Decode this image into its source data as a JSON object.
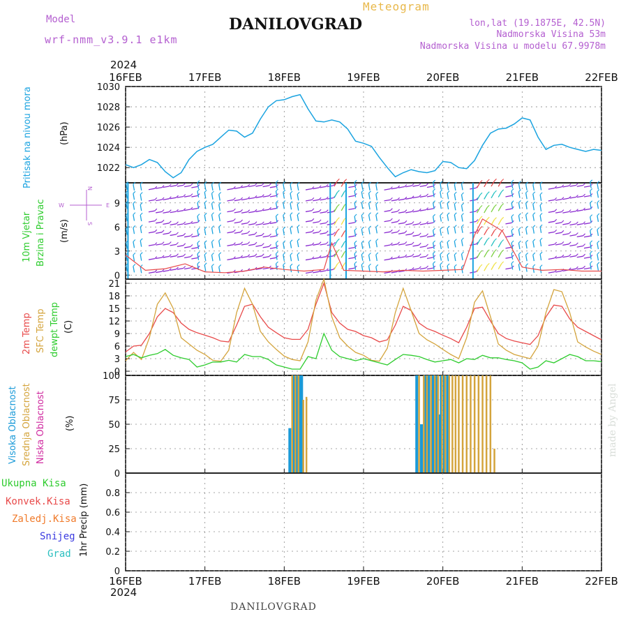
{
  "header": {
    "model_label": "Model",
    "model": "wrf-nmm_v3.9.1 e1km",
    "title": "DANILOVGRAD",
    "product": "Meteogram",
    "lonlat": "lon,lat (19.1875E, 42.5N)",
    "altitude": "Nadmorska Visina 53m",
    "altitude_model": "Nadmorska Visina u modelu 67.9978m"
  },
  "footer": {
    "station": "DANILOVGRAD",
    "credit": "made by Angel"
  },
  "time_axis": {
    "year": "2024",
    "labels": [
      "16FEB",
      "17FEB",
      "18FEB",
      "19FEB",
      "20FEB",
      "21FEB",
      "22FEB"
    ]
  },
  "colors": {
    "pressure": "#1aa3e0",
    "temp2m": "#e84a4a",
    "sfc_temp": "#d4a43c",
    "dewpoint": "#2ecc2e",
    "high_cloud": "#1a9ad8",
    "mid_cloud": "#d4a43c",
    "low_cloud": "#d02aa0",
    "purple": "#b45fd0",
    "green_label": "#2ecc2e"
  },
  "panels": {
    "pressure": {
      "ylabel1": "Pritisak na nivou mora",
      "unit": "(hPa)"
    },
    "wind": {
      "ylabel1": "10m Vjetar",
      "ylabel2": "Brzina i Pravac",
      "unit": "(m/s)",
      "compass_n": "N",
      "compass_s": "S",
      "compass_w": "W",
      "compass_e": "E"
    },
    "temp": {
      "ylabel1": "2m Temp",
      "ylabel2": "SFC Temp",
      "ylabel3": "dewpt Temp",
      "unit": "(C)"
    },
    "cloud": {
      "ylabel1": "Visoka Oblacnost",
      "ylabel2": "Srednja Oblacnost",
      "ylabel3": "Niska Oblacnost",
      "unit": "(%)"
    },
    "precip": {
      "ylabel": "1hr Precip (mm)",
      "legend": [
        "Ukupna Kisa",
        "Konvek.Kisa",
        "Zaledj.Kisa",
        "Snijeg",
        "Grad"
      ],
      "legend_colors": [
        "#2ecc2e",
        "#e84a4a",
        "#f07a2a",
        "#3a3ae0",
        "#2abfbf"
      ]
    }
  },
  "chart_data": [
    {
      "type": "line",
      "name": "pressure",
      "ylim": [
        1020.5,
        1030
      ],
      "yticks": [
        1022,
        1024,
        1026,
        1028,
        1030
      ],
      "x_days": [
        0,
        0.1,
        0.2,
        0.3,
        0.4,
        0.5,
        0.6,
        0.7,
        0.8,
        0.9,
        1.0,
        1.1,
        1.2,
        1.3,
        1.4,
        1.5,
        1.6,
        1.7,
        1.8,
        1.9,
        2.0,
        2.1,
        2.2,
        2.3,
        2.4,
        2.5,
        2.6,
        2.7,
        2.8,
        2.9,
        3.0,
        3.1,
        3.2,
        3.3,
        3.4,
        3.5,
        3.6,
        3.7,
        3.8,
        3.9,
        4.0,
        4.1,
        4.2,
        4.3,
        4.4,
        4.5,
        4.6,
        4.7,
        4.8,
        4.9,
        5.0,
        5.1,
        5.2,
        5.3,
        5.4,
        5.5,
        5.6,
        5.7,
        5.8,
        5.9,
        6.0
      ],
      "values": [
        1022.3,
        1022.0,
        1022.3,
        1022.8,
        1022.5,
        1021.6,
        1021.0,
        1021.5,
        1022.8,
        1023.6,
        1024.0,
        1024.3,
        1025.0,
        1025.7,
        1025.6,
        1025.0,
        1025.4,
        1026.8,
        1028.0,
        1028.6,
        1028.7,
        1029.0,
        1029.2,
        1027.8,
        1026.6,
        1026.5,
        1026.7,
        1026.5,
        1025.8,
        1024.6,
        1024.4,
        1024.1,
        1023.0,
        1022.0,
        1021.1,
        1021.5,
        1021.8,
        1021.6,
        1021.5,
        1021.7,
        1022.6,
        1022.5,
        1022.0,
        1021.9,
        1022.7,
        1024.2,
        1025.4,
        1025.8,
        1025.9,
        1026.3,
        1026.9,
        1026.7,
        1025.0,
        1023.8,
        1024.2,
        1024.3,
        1024.0,
        1023.8,
        1023.6,
        1023.8,
        1023.7
      ]
    },
    {
      "type": "line",
      "name": "wind",
      "ylim": [
        -0.5,
        11.5
      ],
      "yticks": [
        0,
        3,
        6,
        9
      ],
      "x_days": [
        0,
        0.25,
        0.5,
        0.75,
        1.0,
        1.25,
        1.5,
        1.75,
        2.0,
        2.25,
        2.5,
        2.6,
        2.75,
        3.0,
        3.25,
        3.5,
        3.75,
        4.0,
        4.25,
        4.4,
        4.5,
        4.75,
        5.0,
        5.25,
        5.5,
        5.75,
        6.0
      ],
      "values": [
        2.5,
        0.6,
        0.8,
        1.4,
        0.4,
        0.3,
        0.5,
        1.0,
        0.7,
        0.5,
        0.7,
        4.0,
        0.6,
        0.5,
        0.4,
        0.6,
        0.5,
        0.6,
        0.7,
        5.0,
        7.0,
        5.5,
        1.0,
        0.6,
        0.7,
        0.5,
        0.5
      ]
    },
    {
      "type": "line",
      "name": "temperature",
      "ylim": [
        -1,
        22
      ],
      "yticks": [
        0,
        3,
        6,
        9,
        12,
        15,
        18,
        21
      ],
      "x_days": [
        0,
        0.1,
        0.2,
        0.3,
        0.4,
        0.5,
        0.6,
        0.7,
        0.8,
        0.9,
        1.0,
        1.1,
        1.2,
        1.3,
        1.4,
        1.5,
        1.6,
        1.7,
        1.8,
        1.9,
        2.0,
        2.1,
        2.2,
        2.3,
        2.4,
        2.5,
        2.6,
        2.7,
        2.8,
        2.9,
        3.0,
        3.1,
        3.2,
        3.3,
        3.4,
        3.5,
        3.6,
        3.7,
        3.8,
        3.9,
        4.0,
        4.1,
        4.2,
        4.3,
        4.4,
        4.5,
        4.6,
        4.7,
        4.8,
        4.9,
        5.0,
        5.1,
        5.2,
        5.3,
        5.4,
        5.5,
        5.6,
        5.7,
        5.8,
        5.9,
        6.0
      ],
      "series": [
        {
          "name": "2m Temp",
          "values": [
            4.6,
            6.0,
            6.2,
            9.0,
            13.0,
            15.0,
            14.0,
            11.5,
            10.0,
            9.2,
            8.6,
            8.0,
            7.2,
            7.0,
            11.0,
            15.5,
            16.0,
            13.0,
            10.5,
            9.2,
            8.0,
            7.6,
            7.6,
            10.0,
            16.0,
            21.0,
            14.0,
            11.5,
            10.0,
            9.5,
            8.5,
            8.0,
            7.0,
            7.5,
            11.0,
            15.5,
            14.5,
            11.5,
            10.2,
            9.5,
            8.6,
            7.8,
            6.8,
            10.5,
            15.0,
            15.3,
            12.0,
            9.0,
            7.8,
            7.2,
            6.8,
            6.4,
            8.5,
            13.0,
            15.8,
            15.5,
            12.5,
            10.5,
            9.5,
            8.5,
            7.5
          ]
        },
        {
          "name": "SFC Temp",
          "values": [
            2.5,
            4.5,
            2.8,
            8.0,
            16.0,
            18.7,
            15.0,
            8.0,
            6.5,
            5.0,
            4.0,
            2.6,
            2.4,
            5.0,
            14.0,
            19.8,
            16.0,
            9.5,
            7.0,
            5.2,
            3.6,
            2.8,
            2.5,
            7.0,
            17.0,
            22.0,
            13.0,
            8.0,
            6.0,
            4.5,
            3.8,
            2.6,
            2.4,
            5.5,
            14.0,
            19.8,
            14.5,
            9.0,
            7.5,
            6.5,
            5.2,
            4.0,
            3.0,
            8.0,
            16.5,
            19.2,
            13.0,
            6.5,
            5.0,
            4.0,
            3.5,
            3.0,
            6.0,
            14.0,
            19.5,
            19.0,
            14.0,
            7.0,
            5.8,
            4.8,
            4.0
          ]
        },
        {
          "name": "dewpt Temp",
          "values": [
            3.5,
            4.0,
            3.2,
            3.8,
            4.2,
            5.2,
            3.8,
            3.2,
            2.8,
            1.0,
            1.5,
            2.2,
            2.2,
            2.6,
            2.2,
            4.0,
            3.5,
            3.5,
            2.8,
            1.5,
            1.0,
            0.5,
            0.5,
            3.5,
            3.0,
            9.0,
            5.0,
            3.5,
            3.0,
            2.5,
            3.0,
            2.5,
            2.0,
            1.5,
            2.8,
            4.0,
            3.8,
            3.5,
            2.8,
            2.2,
            2.5,
            2.8,
            2.0,
            3.0,
            2.8,
            3.8,
            3.2,
            3.2,
            2.8,
            2.5,
            2.0,
            0.5,
            1.0,
            2.5,
            2.0,
            3.0,
            4.0,
            3.5,
            2.5,
            2.5,
            2.3
          ]
        }
      ]
    },
    {
      "type": "bar",
      "name": "cloud",
      "ylim": [
        0,
        100
      ],
      "yticks": [
        0,
        25,
        50,
        75,
        100
      ],
      "series": [
        {
          "name": "Visoka Oblacnost",
          "x_days": [
            2.07,
            2.12,
            2.16,
            2.2,
            2.22,
            3.67,
            3.73,
            3.78,
            3.82,
            3.86,
            3.88,
            3.92,
            3.95,
            3.98,
            4.02,
            4.06
          ],
          "values": [
            46,
            100,
            100,
            100,
            100,
            100,
            50,
            100,
            100,
            85,
            100,
            100,
            60,
            100,
            100,
            100
          ]
        },
        {
          "name": "Srednja Oblacnost",
          "x_days": [
            2.1,
            2.14,
            2.18,
            2.24,
            2.28,
            3.7,
            3.76,
            3.8,
            3.85,
            3.9,
            3.94,
            3.99,
            4.03,
            4.08,
            4.12,
            4.16,
            4.2,
            4.25,
            4.3,
            4.35,
            4.4,
            4.45,
            4.5,
            4.55,
            4.6,
            4.65
          ],
          "values": [
            100,
            100,
            100,
            75,
            78,
            100,
            100,
            100,
            100,
            100,
            100,
            100,
            100,
            100,
            100,
            100,
            100,
            100,
            100,
            100,
            100,
            100,
            100,
            100,
            100,
            25
          ]
        },
        {
          "name": "Niska Oblacnost",
          "x_days": [],
          "values": []
        }
      ]
    },
    {
      "type": "bar",
      "name": "precipitation",
      "ylim": [
        0,
        1.0
      ],
      "yticks": [
        0,
        0.2,
        0.4,
        0.6,
        0.8
      ],
      "series": [
        {
          "name": "Ukupna Kisa",
          "values": []
        }
      ]
    }
  ]
}
